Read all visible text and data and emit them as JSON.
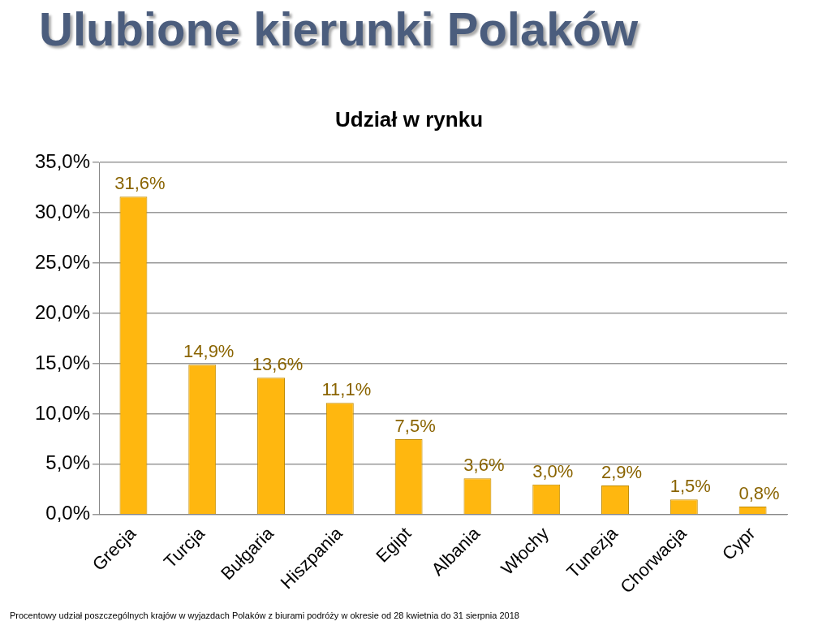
{
  "chart_data": {
    "type": "bar",
    "title": "Ulubione kierunki Polaków",
    "subtitle": "Udział w rynku",
    "categories": [
      "Grecja",
      "Turcja",
      "Bułgaria",
      "Hiszpania",
      "Egipt",
      "Albania",
      "Włochy",
      "Tunezja",
      "Chorwacja",
      "Cypr"
    ],
    "values": [
      31.6,
      14.9,
      13.6,
      11.1,
      7.5,
      3.6,
      3.0,
      2.9,
      1.5,
      0.8
    ],
    "value_labels": [
      "31,6%",
      "14,9%",
      "13,6%",
      "11,1%",
      "7,5%",
      "3,6%",
      "3,0%",
      "2,9%",
      "1,5%",
      "0,8%"
    ],
    "color": "#ffb70f",
    "ylim": [
      0,
      35
    ],
    "yticks": [
      {
        "value": 0,
        "label": "0,0%"
      },
      {
        "value": 5,
        "label": "5,0%"
      },
      {
        "value": 10,
        "label": "10,0%"
      },
      {
        "value": 15,
        "label": "15,0%"
      },
      {
        "value": 20,
        "label": "20,0%"
      },
      {
        "value": 25,
        "label": "25,0%"
      },
      {
        "value": 30,
        "label": "30,0%"
      },
      {
        "value": 35,
        "label": "35,0%"
      }
    ],
    "grid": "y",
    "legend": false,
    "annotations": [
      "Procentowy udział poszczególnych krajów w wyjazdach Polaków z biurami podróży w okresie od 28 kwietnia do 31 sierpnia 2018"
    ]
  }
}
